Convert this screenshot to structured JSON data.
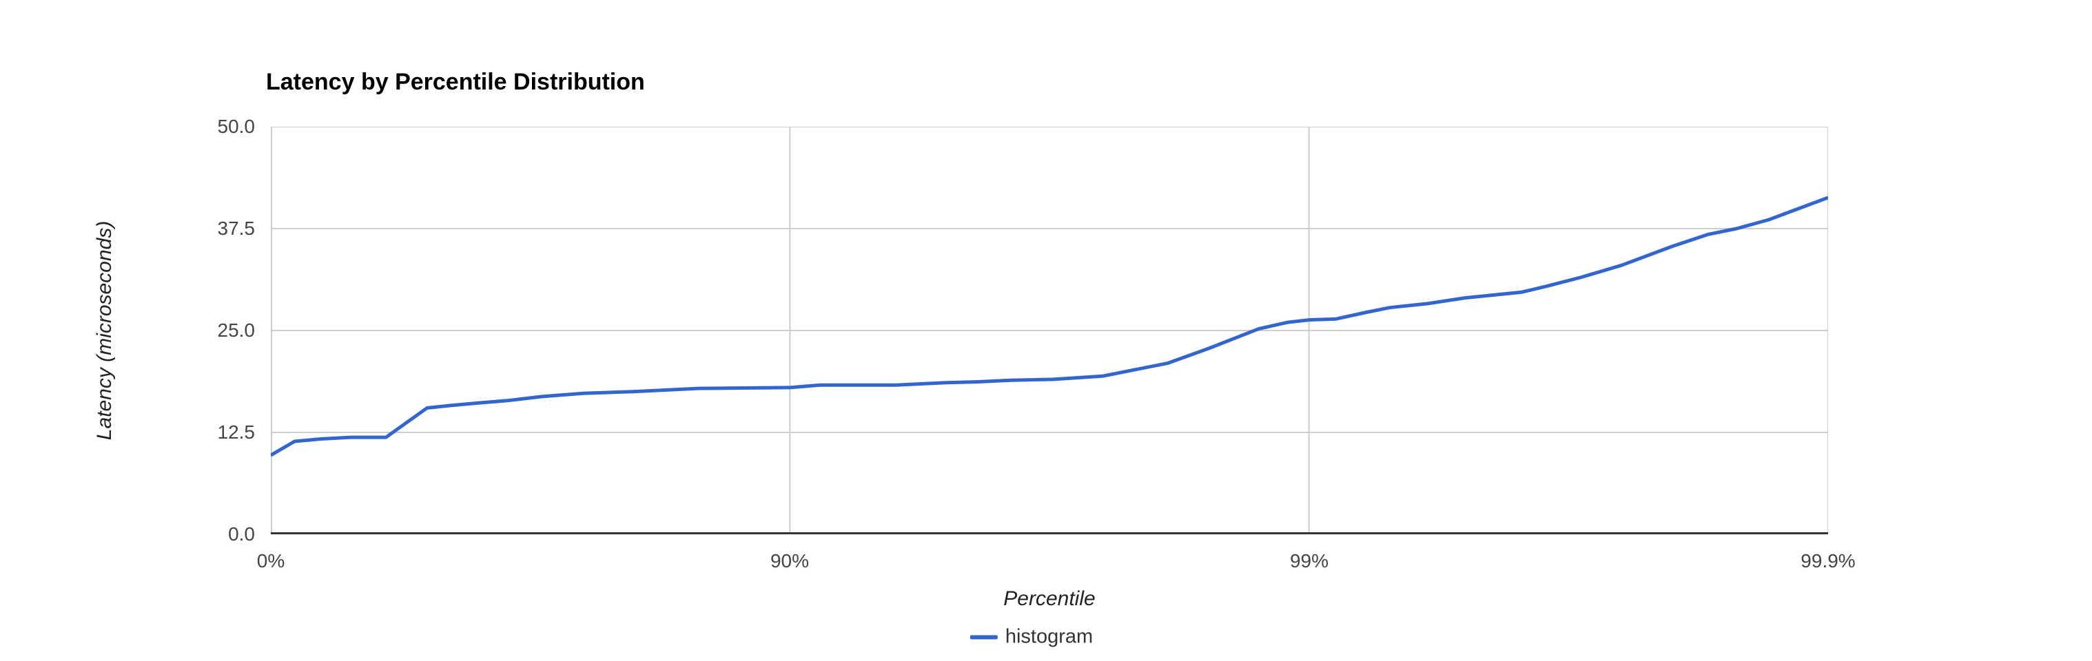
{
  "colors": {
    "series_blue": "#3366cc",
    "gridline": "#cccccc",
    "plot_border": "#cccccc",
    "baseline": "#333333",
    "tick_text": "#444444",
    "title_text": "#000000",
    "axis_title_text": "#222222",
    "background": "#ffffff"
  },
  "chart_data": {
    "type": "line",
    "title": "Latency by Percentile Distribution",
    "xlabel": "Percentile",
    "ylabel": "Latency (microseconds)",
    "x_scale": "log-percentile (decades of nines: 0%, 90%, 99%, 99.9%)",
    "x_ticks": [
      "0%",
      "90%",
      "99%",
      "99.9%"
    ],
    "y_ticks": [
      "50.0",
      "37.5",
      "25.0",
      "12.5",
      "0.0"
    ],
    "ylim": [
      0,
      50
    ],
    "x_decades": 3,
    "grid": true,
    "legend_position": "bottom-center",
    "series": [
      {
        "name": "histogram",
        "color": "#3366cc",
        "points_percentile_vs_microseconds": [
          [
            0,
            9.7
          ],
          [
            10,
            11.4
          ],
          [
            20,
            11.7
          ],
          [
            30,
            11.9
          ],
          [
            40,
            11.9
          ],
          [
            50,
            15.5
          ],
          [
            55,
            15.8
          ],
          [
            60,
            16.1
          ],
          [
            65,
            16.4
          ],
          [
            70,
            16.9
          ],
          [
            75,
            17.3
          ],
          [
            80,
            17.5
          ],
          [
            85,
            17.9
          ],
          [
            90,
            18.0
          ],
          [
            91.25,
            18.3
          ],
          [
            92.5,
            18.3
          ],
          [
            93.75,
            18.3
          ],
          [
            95,
            18.6
          ],
          [
            95.63,
            18.7
          ],
          [
            96.25,
            18.9
          ],
          [
            96.88,
            19.0
          ],
          [
            97.5,
            19.4
          ],
          [
            98.13,
            21.0
          ],
          [
            98.44,
            22.8
          ],
          [
            98.75,
            25.2
          ],
          [
            98.9,
            26.0
          ],
          [
            99.0,
            26.3
          ],
          [
            99.11,
            26.4
          ],
          [
            99.22,
            27.2
          ],
          [
            99.3,
            27.8
          ],
          [
            99.41,
            28.3
          ],
          [
            99.5,
            29.0
          ],
          [
            99.61,
            29.7
          ],
          [
            99.65,
            30.4
          ],
          [
            99.7,
            31.5
          ],
          [
            99.75,
            33.0
          ],
          [
            99.8,
            35.3
          ],
          [
            99.83,
            36.8
          ],
          [
            99.85,
            37.5
          ],
          [
            99.87,
            38.6
          ],
          [
            99.9,
            41.3
          ]
        ]
      }
    ]
  },
  "legend": {
    "label": "histogram"
  }
}
